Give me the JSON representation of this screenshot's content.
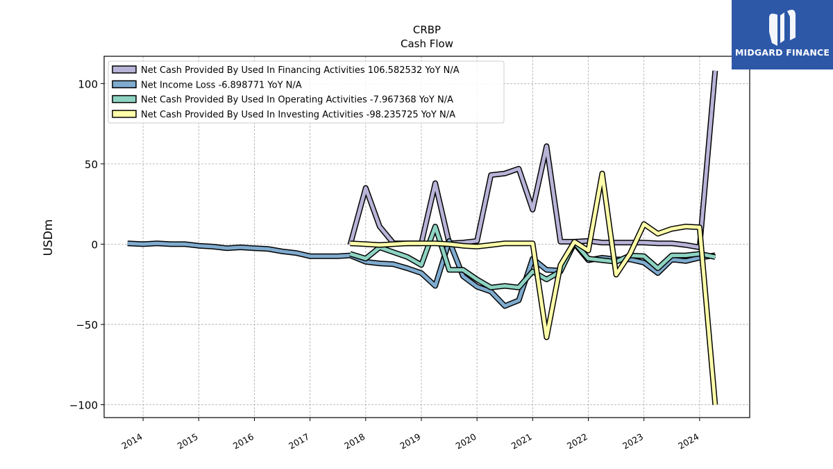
{
  "logo": {
    "text": "MIDGARD FINANCE",
    "icon": "midgard-m-logo-icon",
    "bg_color": "#2d58a8"
  },
  "chart_data": {
    "type": "line",
    "title": "CRBP",
    "subtitle": "Cash Flow",
    "ylabel": "USDm",
    "xlabel": "",
    "ylim": [
      -108,
      117
    ],
    "xlim": [
      2013.3,
      2024.9
    ],
    "yticks": [
      100,
      50,
      0,
      -50,
      -100
    ],
    "ytick_labels": [
      "100",
      "50",
      "0",
      "−50",
      "−100"
    ],
    "xticks": [
      2014,
      2015,
      2016,
      2017,
      2018,
      2019,
      2020,
      2021,
      2022,
      2023,
      2024
    ],
    "xtick_labels": [
      "2014",
      "2015",
      "2016",
      "2017",
      "2018",
      "2019",
      "2020",
      "2021",
      "2022",
      "2023",
      "2024"
    ],
    "grid": true,
    "legend_position": "top-left",
    "series": [
      {
        "name": "Net Cash Provided By Used In Financing Activities  106.582532 YoY N/A",
        "color": "#b8b4d8",
        "points": [
          [
            2017.72,
            -0.5
          ],
          [
            2018.0,
            35
          ],
          [
            2018.25,
            11
          ],
          [
            2018.5,
            0.5
          ],
          [
            2018.75,
            0.5
          ],
          [
            2019.0,
            0.5
          ],
          [
            2019.25,
            38
          ],
          [
            2019.5,
            0.5
          ],
          [
            2019.75,
            1
          ],
          [
            2020.0,
            2
          ],
          [
            2020.25,
            43
          ],
          [
            2020.5,
            44
          ],
          [
            2020.75,
            47
          ],
          [
            2021.0,
            21.5
          ],
          [
            2021.25,
            61
          ],
          [
            2021.5,
            1.5
          ],
          [
            2021.75,
            1.5
          ],
          [
            2022.0,
            2
          ],
          [
            2022.25,
            1
          ],
          [
            2022.5,
            1
          ],
          [
            2022.75,
            1
          ],
          [
            2023.0,
            1
          ],
          [
            2023.25,
            0.5
          ],
          [
            2023.5,
            0.5
          ],
          [
            2023.75,
            -0.5
          ],
          [
            2024.0,
            -2
          ],
          [
            2024.28,
            108
          ]
        ]
      },
      {
        "name": "Net Income Loss  -6.898771 YoY N/A",
        "color": "#7fabcf",
        "points": [
          [
            2013.72,
            0.5
          ],
          [
            2014.0,
            0
          ],
          [
            2014.25,
            0.5
          ],
          [
            2014.5,
            0
          ],
          [
            2014.75,
            0
          ],
          [
            2015.0,
            -1
          ],
          [
            2015.25,
            -1.5
          ],
          [
            2015.5,
            -2.5
          ],
          [
            2015.75,
            -2
          ],
          [
            2016.0,
            -2.5
          ],
          [
            2016.25,
            -3
          ],
          [
            2016.5,
            -4.5
          ],
          [
            2016.75,
            -5.5
          ],
          [
            2017.0,
            -7.5
          ],
          [
            2017.25,
            -7.5
          ],
          [
            2017.5,
            -7.5
          ],
          [
            2017.72,
            -7
          ],
          [
            2018.0,
            -11
          ],
          [
            2018.25,
            -12
          ],
          [
            2018.5,
            -12.5
          ],
          [
            2018.75,
            -15
          ],
          [
            2019.0,
            -18
          ],
          [
            2019.25,
            -26
          ],
          [
            2019.5,
            2
          ],
          [
            2019.75,
            -20
          ],
          [
            2020.0,
            -26.5
          ],
          [
            2020.25,
            -29.5
          ],
          [
            2020.5,
            -38.5
          ],
          [
            2020.75,
            -35
          ],
          [
            2021.0,
            -9
          ],
          [
            2021.25,
            -16
          ],
          [
            2021.5,
            -16.5
          ],
          [
            2021.75,
            0.5
          ],
          [
            2022.0,
            -10
          ],
          [
            2022.25,
            -8.5
          ],
          [
            2022.5,
            -9.5
          ],
          [
            2022.75,
            -9.5
          ],
          [
            2023.0,
            -11.5
          ],
          [
            2023.25,
            -18
          ],
          [
            2023.5,
            -9.5
          ],
          [
            2023.75,
            -10.5
          ],
          [
            2024.0,
            -8.5
          ],
          [
            2024.28,
            -6.9
          ]
        ]
      },
      {
        "name": "Net Cash Provided By Used In Operating Activities  -7.967368 YoY N/A",
        "color": "#8ed3c2",
        "points": [
          [
            2017.72,
            -6
          ],
          [
            2018.0,
            -9
          ],
          [
            2018.25,
            -2
          ],
          [
            2018.5,
            -5
          ],
          [
            2018.75,
            -8
          ],
          [
            2019.0,
            -13
          ],
          [
            2019.25,
            11
          ],
          [
            2019.5,
            -16
          ],
          [
            2019.75,
            -16
          ],
          [
            2020.0,
            -22
          ],
          [
            2020.25,
            -27
          ],
          [
            2020.5,
            -26
          ],
          [
            2020.75,
            -27
          ],
          [
            2021.0,
            -17
          ],
          [
            2021.25,
            -22
          ],
          [
            2021.5,
            -17
          ],
          [
            2021.75,
            1
          ],
          [
            2022.0,
            -9
          ],
          [
            2022.25,
            -10
          ],
          [
            2022.5,
            -11
          ],
          [
            2022.75,
            -7
          ],
          [
            2023.0,
            -7.5
          ],
          [
            2023.25,
            -15
          ],
          [
            2023.5,
            -7
          ],
          [
            2023.75,
            -7
          ],
          [
            2024.0,
            -6
          ],
          [
            2024.28,
            -8
          ]
        ]
      },
      {
        "name": "Net Cash Provided By Used In Investing Activities  -98.235725 YoY N/A",
        "color": "#ffffaa",
        "points": [
          [
            2017.72,
            0.5
          ],
          [
            2018.0,
            0
          ],
          [
            2018.25,
            -0.5
          ],
          [
            2018.5,
            0
          ],
          [
            2018.75,
            0.5
          ],
          [
            2019.0,
            0.5
          ],
          [
            2019.25,
            0.5
          ],
          [
            2019.5,
            0
          ],
          [
            2019.75,
            -1
          ],
          [
            2020.0,
            -1.5
          ],
          [
            2020.25,
            -0.5
          ],
          [
            2020.5,
            0.5
          ],
          [
            2020.75,
            0.5
          ],
          [
            2021.0,
            0.5
          ],
          [
            2021.25,
            -58
          ],
          [
            2021.5,
            -13
          ],
          [
            2021.75,
            1.5
          ],
          [
            2022.0,
            -4
          ],
          [
            2022.25,
            44
          ],
          [
            2022.5,
            -19
          ],
          [
            2022.75,
            -6
          ],
          [
            2023.0,
            12.5
          ],
          [
            2023.25,
            6.5
          ],
          [
            2023.5,
            9.5
          ],
          [
            2023.75,
            11
          ],
          [
            2024.0,
            10.5
          ],
          [
            2024.28,
            -100
          ]
        ]
      }
    ]
  }
}
